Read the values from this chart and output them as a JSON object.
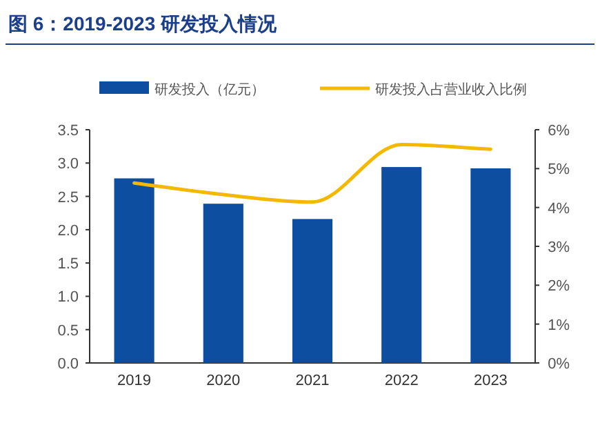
{
  "chart_data": {
    "type": "bar",
    "title": "图 6：2019-2023 研发投入情况",
    "categories": [
      "2019",
      "2020",
      "2021",
      "2022",
      "2023"
    ],
    "series": [
      {
        "name": "研发投入（亿元）",
        "color": "#0d4ea0",
        "values": [
          2.77,
          2.39,
          2.16,
          2.94,
          2.92
        ]
      },
      {
        "name": "研发投入占营业收入比例",
        "type": "line",
        "axis": "y2",
        "color": "#f5b800",
        "values": [
          4.63,
          4.33,
          4.14,
          5.62,
          5.5
        ]
      }
    ],
    "ylim": [
      0,
      3.5
    ],
    "yticks": [
      {
        "value": 0,
        "label": "0.0"
      },
      0.5,
      {
        "value": 1,
        "label": "1.0"
      },
      1.5,
      {
        "value": 2,
        "label": "2.0"
      },
      2.5,
      {
        "value": 3,
        "label": "3.0"
      },
      3.5
    ],
    "y2lim": [
      0,
      6
    ],
    "y2ticks": [
      {
        "value": 0,
        "label": "0%"
      },
      {
        "value": 1,
        "label": "1%"
      },
      {
        "value": 2,
        "label": "2%"
      },
      {
        "value": 3,
        "label": "3%"
      },
      {
        "value": 4,
        "label": "4%"
      },
      {
        "value": 5,
        "label": "5%"
      },
      {
        "value": 6,
        "label": "6%"
      }
    ],
    "legend": "top",
    "grid": false
  }
}
